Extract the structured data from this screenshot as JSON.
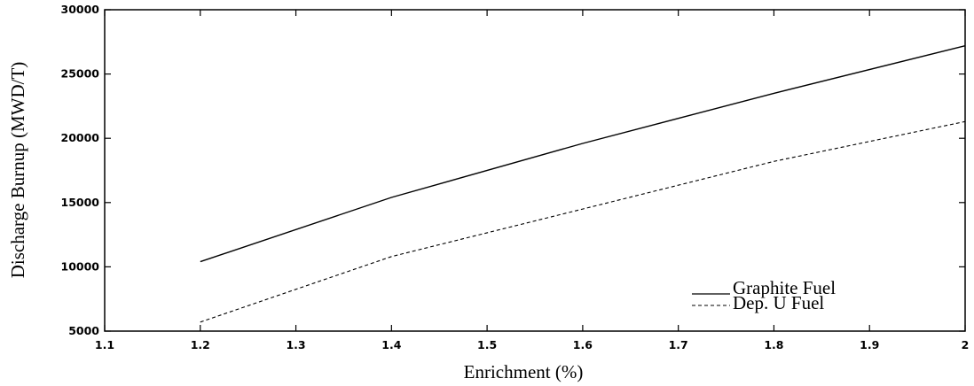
{
  "chart_data": {
    "type": "line",
    "title": "",
    "xlabel": "Enrichment (%)",
    "ylabel": "Discharge Burnup (MWD/T)",
    "xlim": [
      1.1,
      2.0
    ],
    "ylim": [
      5000,
      30000
    ],
    "xticks": [
      "1.1",
      "1.2",
      "1.3",
      "1.4",
      "1.5",
      "1.6",
      "1.7",
      "1.8",
      "1.9",
      "2"
    ],
    "yticks": [
      "5000",
      "10000",
      "15000",
      "20000",
      "25000",
      "30000"
    ],
    "grid": false,
    "legend_position": "bottom-right",
    "series": [
      {
        "name": "Graphite Fuel",
        "style": "solid",
        "color": "#000000",
        "x": [
          1.2,
          1.4,
          1.6,
          1.8,
          2.0
        ],
        "y": [
          10400,
          15400,
          19600,
          23500,
          27200
        ]
      },
      {
        "name": "Dep. U Fuel",
        "style": "dashed",
        "color": "#000000",
        "x": [
          1.2,
          1.4,
          1.6,
          1.8,
          2.0
        ],
        "y": [
          5700,
          10800,
          14500,
          18200,
          21300
        ]
      }
    ]
  }
}
